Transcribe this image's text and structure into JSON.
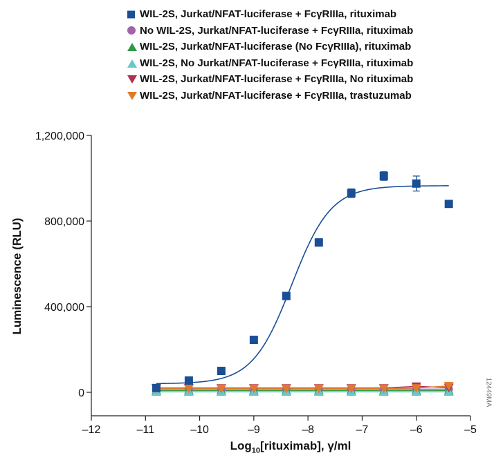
{
  "chart_data": {
    "type": "scatter",
    "xlabel_main": "Log",
    "xlabel_sub": "10",
    "xlabel_rest": "[rituximab], γ/ml",
    "ylabel": "Luminescence (RLU)",
    "xlim": [
      -12,
      -5
    ],
    "ylim": [
      -80000,
      1200000
    ],
    "x_ticks": [
      -12,
      -11,
      -10,
      -9,
      -8,
      -7,
      -6,
      -5
    ],
    "x_tick_labels": [
      "–12",
      "–11",
      "–10",
      "–9",
      "–8",
      "–7",
      "–6",
      "–5"
    ],
    "y_ticks": [
      0,
      400000,
      800000,
      1200000
    ],
    "y_tick_labels": [
      "0",
      "400,000",
      "800,000",
      "1,200,000"
    ],
    "x": [
      -10.8,
      -10.2,
      -9.6,
      -9.0,
      -8.4,
      -7.8,
      -7.2,
      -6.6,
      -6.0,
      -5.4
    ],
    "series": [
      {
        "name": "WIL-2S, Jurkat/NFAT-luciferase + FcγRIIIa, rituximab",
        "marker": "square",
        "color": "#1a4e96",
        "values": [
          20000,
          55000,
          100000,
          245000,
          450000,
          700000,
          930000,
          1010000,
          975000,
          880000
        ],
        "errors": [
          0,
          0,
          0,
          0,
          0,
          0,
          20000,
          20000,
          35000,
          0
        ]
      },
      {
        "name": "No WIL-2S, Jurkat/NFAT-luciferase + FcγRIIIa, rituximab",
        "marker": "circle",
        "color": "#a064a8",
        "values": [
          15000,
          15000,
          15000,
          15000,
          15000,
          15000,
          15000,
          15000,
          15000,
          15000
        ]
      },
      {
        "name": "WIL-2S, Jurkat/NFAT-luciferase (No FcγRIIIa), rituximab",
        "marker": "triangle-up",
        "color": "#2e9a45",
        "values": [
          8000,
          8000,
          8000,
          8000,
          8000,
          8000,
          8000,
          8000,
          8000,
          8000
        ]
      },
      {
        "name": "WIL-2S, No Jurkat/NFAT-luciferase + FcγRIIIa, rituximab",
        "marker": "triangle-up",
        "color": "#6cc6cc",
        "values": [
          2000,
          2000,
          2000,
          2000,
          2000,
          2000,
          2000,
          2000,
          2000,
          2000
        ]
      },
      {
        "name": "WIL-2S, Jurkat/NFAT-luciferase + FcγRIIIa, No rituximab",
        "marker": "triangle-down",
        "color": "#b03050",
        "values": [
          20000,
          20000,
          20000,
          20000,
          20000,
          20000,
          20000,
          20000,
          28000,
          22000
        ]
      },
      {
        "name": "WIL-2S, Jurkat/NFAT-luciferase + FcγRIIIa, trastuzumab",
        "marker": "triangle-down",
        "color": "#e07a2a",
        "values": [
          18000,
          18000,
          18000,
          18000,
          18000,
          18000,
          18000,
          18000,
          20000,
          30000
        ]
      }
    ],
    "fit": {
      "series_index": 0,
      "bottom": 40000,
      "top": 965000,
      "ec50_log": -8.3,
      "hill": 1.2
    },
    "grid": false,
    "legend_position": "top"
  },
  "figure_id": "12449MA"
}
